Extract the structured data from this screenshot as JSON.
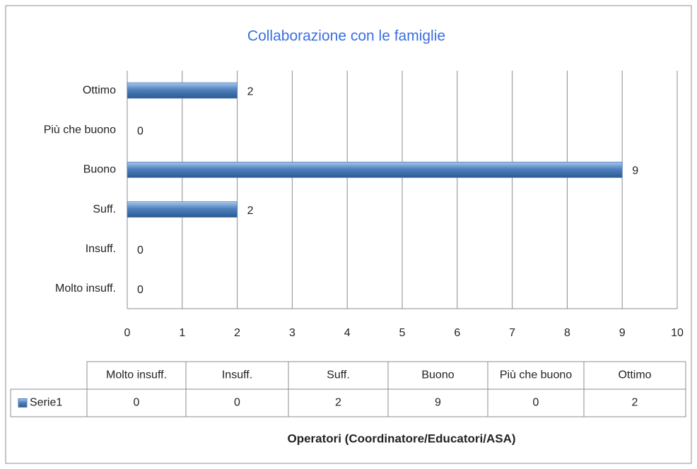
{
  "chart_data": {
    "type": "hbar",
    "title": "Collaborazione con le famiglie",
    "x_label": "Operatori (Coordinatore/Educatori/ASA)",
    "categories": [
      "Molto insuff.",
      "Insuff.",
      "Suff.",
      "Buono",
      "Più che buono",
      "Ottimo"
    ],
    "series": [
      {
        "name": "Serie1",
        "color": "#4f81bd",
        "values": [
          0,
          0,
          2,
          9,
          0,
          2
        ]
      }
    ],
    "xlim": [
      0,
      10
    ],
    "xticks": [
      0,
      1,
      2,
      3,
      4,
      5,
      6,
      7,
      8,
      9,
      10
    ],
    "grid": true,
    "data_table": true
  }
}
